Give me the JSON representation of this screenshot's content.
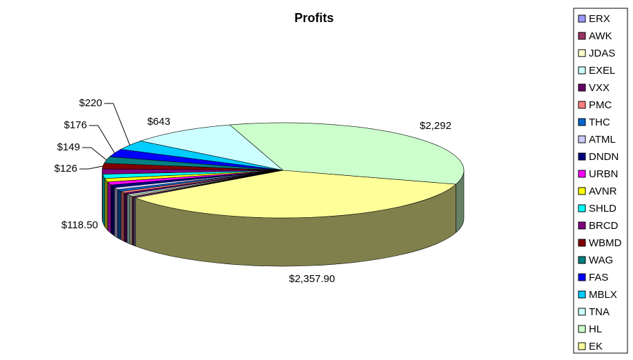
{
  "chart_data": {
    "type": "pie",
    "title": "Profits",
    "categories": [
      "ERX",
      "AWK",
      "JDAS",
      "EXEL",
      "VXX",
      "PMC",
      "THC",
      "ATML",
      "DNDN",
      "URBN",
      "AVNR",
      "SHLD",
      "BRCD",
      "WBMD",
      "WAG",
      "FAS",
      "MBLX",
      "TNA",
      "HL",
      "EK"
    ],
    "values": [
      15,
      20,
      25,
      30,
      35,
      40,
      45,
      50,
      60,
      70,
      80,
      95,
      118.5,
      126,
      149,
      176,
      220,
      643,
      2292,
      2357.9
    ],
    "value_labels": [
      null,
      null,
      null,
      null,
      null,
      null,
      null,
      null,
      null,
      null,
      null,
      null,
      "$118.50",
      "$126",
      "$149",
      "$176",
      "$220",
      "$643",
      "$2,292",
      "$2,357.90"
    ],
    "colors": [
      "#9999ff",
      "#993366",
      "#ffffcc",
      "#ccffff",
      "#660066",
      "#ff8080",
      "#0066cc",
      "#ccccff",
      "#000080",
      "#ff00ff",
      "#ffff00",
      "#00ffff",
      "#800080",
      "#800000",
      "#008080",
      "#0000ff",
      "#00ccff",
      "#ccffff",
      "#ccffcc",
      "#ffff99"
    ],
    "legend": "right"
  }
}
